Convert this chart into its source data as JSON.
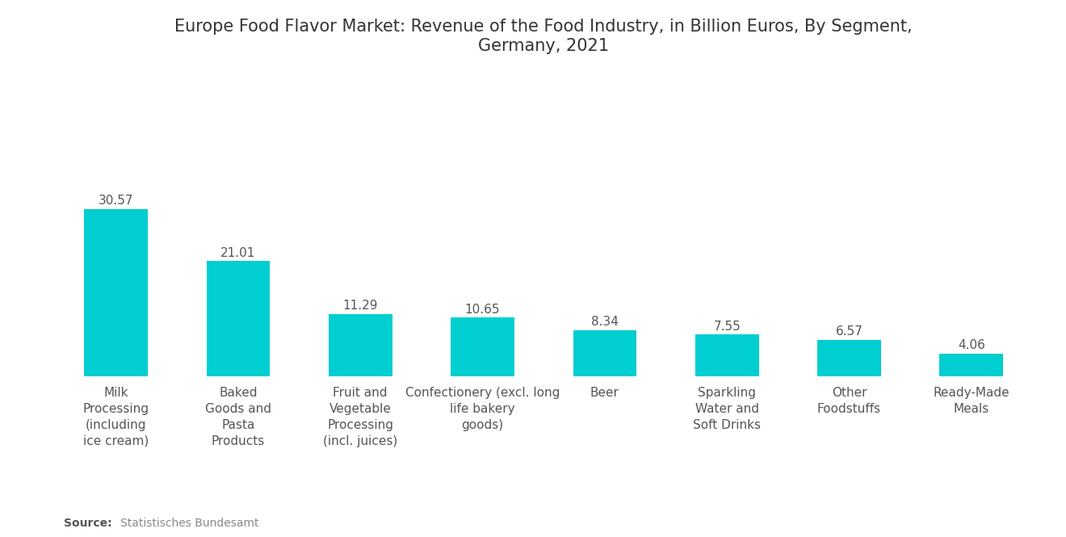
{
  "title": "Europe Food Flavor Market: Revenue of the Food Industry, in Billion Euros, By Segment,\nGermany, 2021",
  "categories": [
    "Milk\nProcessing\n(including\nice cream)",
    "Baked\nGoods and\nPasta\nProducts",
    "Fruit and\nVegetable\nProcessing\n(incl. juices)",
    "Confectionery (excl. long\nlife bakery\ngoods)",
    "Beer",
    "Sparkling\nWater and\nSoft Drinks",
    "Other\nFoodstuffs",
    "Ready-Made\nMeals"
  ],
  "values": [
    30.57,
    21.01,
    11.29,
    10.65,
    8.34,
    7.55,
    6.57,
    4.06
  ],
  "bar_color": "#00CED1",
  "background_color": "#ffffff",
  "title_fontsize": 15,
  "value_fontsize": 11,
  "tick_fontsize": 11,
  "source_bold": "Source:",
  "source_text": "  Statistisches Bundesamt",
  "ylim": [
    0,
    55
  ]
}
